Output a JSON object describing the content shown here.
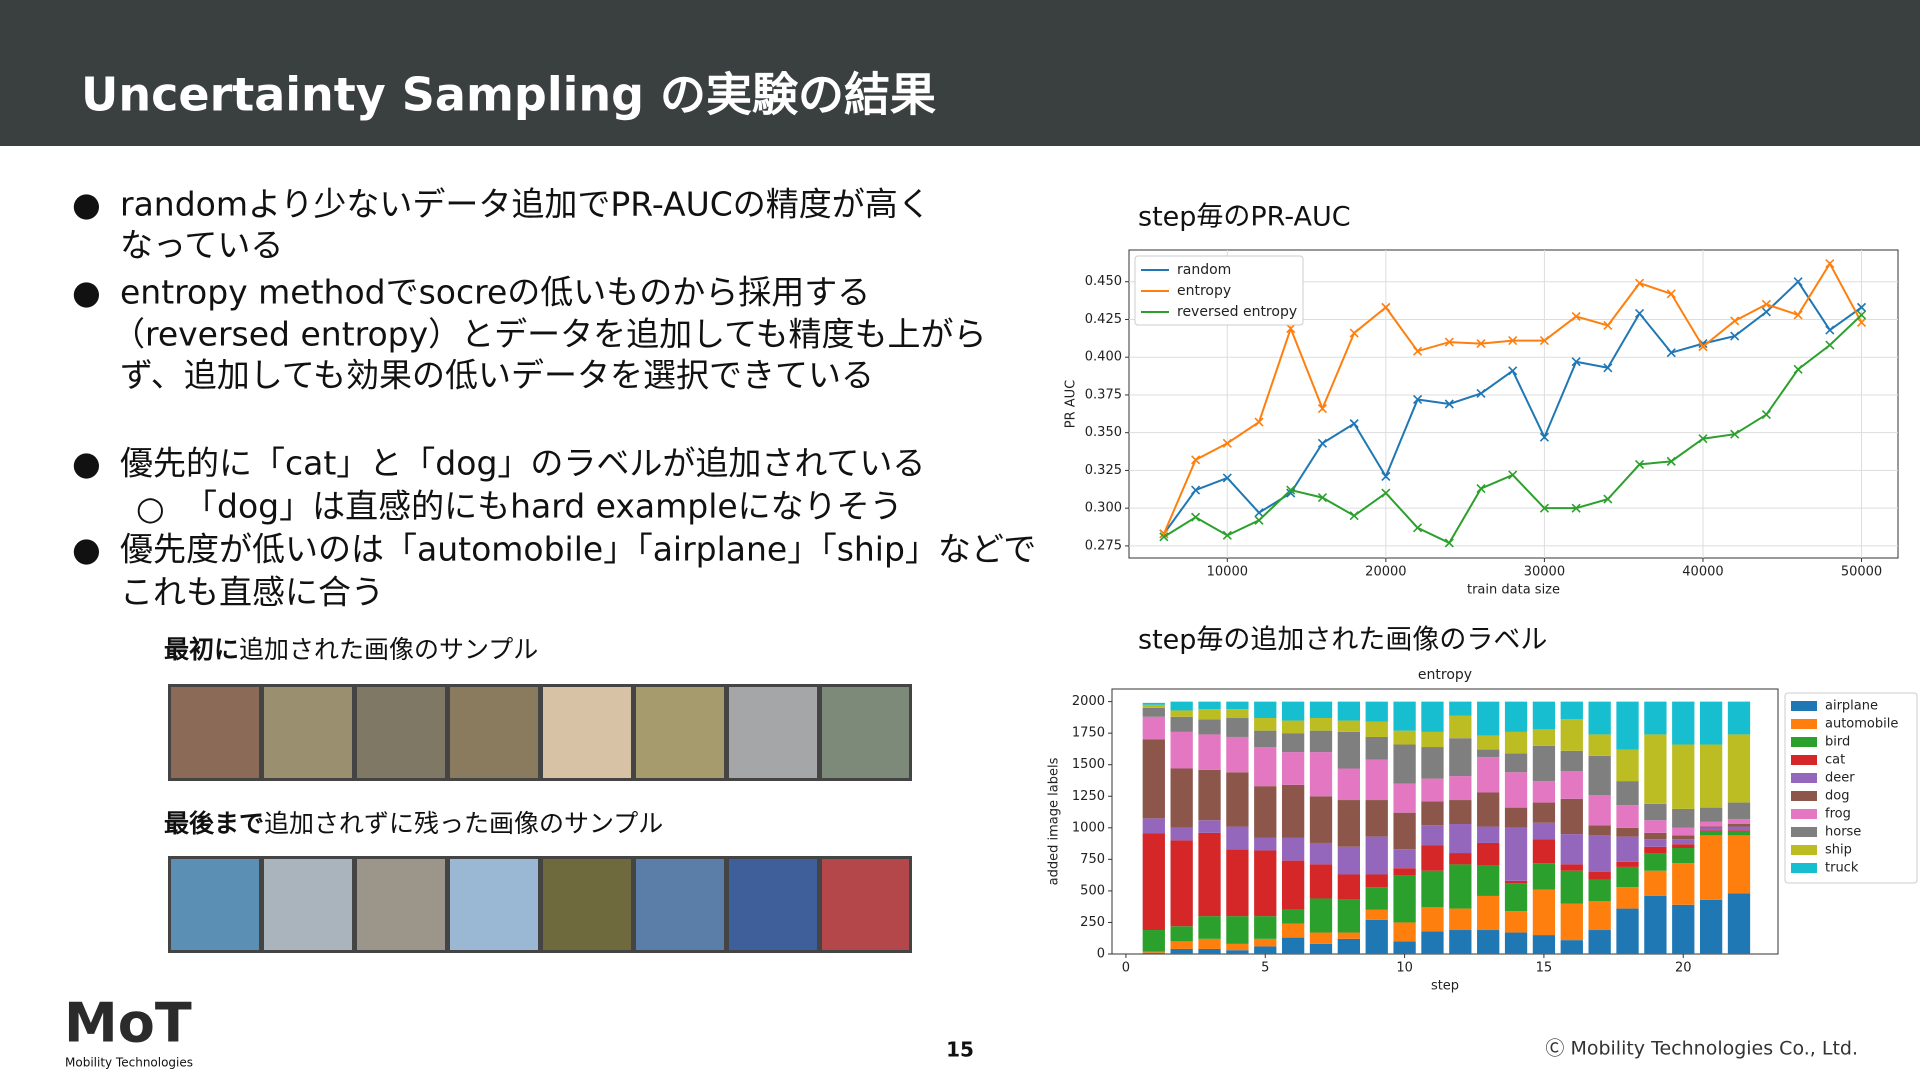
{
  "header": {
    "title": "Uncertainty Sampling の実験の結果"
  },
  "bullets": [
    {
      "lines": [
        "randomより少ないデータ追加でPR-AUCの精度が高く",
        "なっている"
      ]
    },
    {
      "lines": [
        "entropy methodでsocreの低いものから採用する",
        "（reversed entropy）とデータを追加しても精度も上がら",
        "ず、追加しても効果の低いデータを選択できている"
      ]
    },
    {
      "lines": [
        "優先的に「cat」と「dog」のラベルが追加されている"
      ],
      "sub": [
        "「dog」は直感的にもhard exampleになりそう"
      ]
    },
    {
      "lines": [
        "優先度が低いのは「automobile」「airplane」「ship」などで",
        "これも直感に合う"
      ]
    }
  ],
  "samples": [
    {
      "caption_bold": "最初に",
      "caption": "追加された画像のサンプル"
    },
    {
      "caption_bold": "最後まで",
      "caption": "追加されずに残った画像のサンプル"
    }
  ],
  "sections": [
    "step毎のPR-AUC",
    "step毎の追加された画像のラベル"
  ],
  "chart_data": [
    {
      "type": "line",
      "xlabel": "train data size",
      "ylabel": "PR AUC",
      "x": [
        6000,
        8000,
        10000,
        12000,
        14000,
        16000,
        18000,
        20000,
        22000,
        24000,
        26000,
        28000,
        30000,
        32000,
        34000,
        36000,
        38000,
        40000,
        42000,
        44000,
        46000,
        48000,
        50000
      ],
      "series": [
        {
          "name": "random",
          "color": "#1f77b4",
          "values": [
            0.283,
            0.312,
            0.32,
            0.297,
            0.31,
            0.343,
            0.356,
            0.321,
            0.372,
            0.369,
            0.376,
            0.391,
            0.347,
            0.397,
            0.393,
            0.429,
            0.403,
            0.409,
            0.414,
            0.43,
            0.45,
            0.418,
            0.433
          ]
        },
        {
          "name": "entropy",
          "color": "#ff7f0e",
          "values": [
            0.283,
            0.332,
            0.343,
            0.357,
            0.419,
            0.366,
            0.416,
            0.433,
            0.404,
            0.41,
            0.409,
            0.411,
            0.411,
            0.427,
            0.421,
            0.449,
            0.442,
            0.407,
            0.424,
            0.435,
            0.428,
            0.462,
            0.423
          ]
        },
        {
          "name": "reversed entropy",
          "color": "#2ca02c",
          "values": [
            0.281,
            0.294,
            0.282,
            0.292,
            0.312,
            0.307,
            0.295,
            0.31,
            0.287,
            0.277,
            0.313,
            0.322,
            0.3,
            0.3,
            0.306,
            0.329,
            0.331,
            0.346,
            0.349,
            0.362,
            0.392,
            0.408,
            0.428
          ]
        }
      ],
      "xlim": [
        3800,
        52300
      ],
      "xticks": [
        10000,
        20000,
        30000,
        40000,
        50000
      ],
      "ylim": [
        0.267,
        0.471
      ],
      "yticks": [
        0.275,
        {
          "value": 0.3,
          "label": "0.300"
        },
        0.325,
        {
          "value": 0.35,
          "label": "0.350"
        },
        0.375,
        {
          "value": 0.4,
          "label": "0.400"
        },
        0.425,
        {
          "value": 0.45,
          "label": "0.450"
        }
      ],
      "grid": true,
      "legend": "upper left"
    },
    {
      "type": "stacked_bar",
      "title": "entropy",
      "xlabel": "step",
      "ylabel": "added image labels",
      "x": [
        1,
        2,
        3,
        4,
        5,
        6,
        7,
        8,
        9,
        10,
        11,
        12,
        13,
        14,
        15,
        16,
        17,
        18,
        19,
        20,
        21,
        22
      ],
      "series": [
        {
          "name": "airplane",
          "color": "#1f77b4",
          "values": [
            10,
            40,
            40,
            30,
            60,
            130,
            80,
            120,
            270,
            100,
            180,
            190,
            190,
            170,
            150,
            110,
            190,
            360,
            460,
            390,
            430,
            480
          ]
        },
        {
          "name": "automobile",
          "color": "#ff7f0e",
          "values": [
            10,
            60,
            80,
            50,
            60,
            110,
            90,
            50,
            80,
            150,
            190,
            170,
            270,
            170,
            360,
            290,
            230,
            170,
            200,
            330,
            510,
            460
          ]
        },
        {
          "name": "bird",
          "color": "#2ca02c",
          "values": [
            170,
            120,
            180,
            220,
            180,
            110,
            270,
            260,
            180,
            370,
            290,
            350,
            240,
            220,
            210,
            260,
            170,
            160,
            140,
            120,
            30,
            30
          ]
        },
        {
          "name": "cat",
          "color": "#d62728",
          "values": [
            765,
            680,
            660,
            530,
            520,
            390,
            270,
            200,
            100,
            60,
            200,
            90,
            180,
            20,
            190,
            50,
            60,
            40,
            50,
            30,
            10,
            10
          ]
        },
        {
          "name": "deer",
          "color": "#9467bd",
          "values": [
            120,
            100,
            100,
            180,
            100,
            180,
            170,
            220,
            300,
            150,
            160,
            230,
            130,
            420,
            130,
            240,
            290,
            200,
            60,
            40,
            20,
            30
          ]
        },
        {
          "name": "dog",
          "color": "#8c564b",
          "values": [
            625,
            470,
            400,
            430,
            410,
            420,
            370,
            370,
            290,
            290,
            190,
            190,
            270,
            160,
            160,
            280,
            80,
            70,
            50,
            30,
            10,
            20
          ]
        },
        {
          "name": "frog",
          "color": "#e377c2",
          "values": [
            180,
            290,
            280,
            280,
            310,
            260,
            350,
            250,
            320,
            230,
            180,
            190,
            280,
            280,
            170,
            220,
            240,
            180,
            100,
            60,
            40,
            40
          ]
        },
        {
          "name": "horse",
          "color": "#7f7f7f",
          "values": [
            70,
            120,
            120,
            150,
            130,
            150,
            170,
            290,
            180,
            310,
            250,
            300,
            60,
            150,
            280,
            160,
            310,
            190,
            130,
            150,
            110,
            130
          ]
        },
        {
          "name": "ship",
          "color": "#bcbd22",
          "values": [
            25,
            50,
            80,
            70,
            100,
            100,
            100,
            90,
            120,
            110,
            120,
            180,
            110,
            170,
            130,
            250,
            170,
            250,
            550,
            510,
            500,
            540
          ]
        },
        {
          "name": "truck",
          "color": "#17becf",
          "values": [
            15,
            70,
            60,
            60,
            130,
            150,
            130,
            150,
            160,
            230,
            240,
            110,
            270,
            240,
            220,
            140,
            260,
            380,
            260,
            340,
            340,
            260
          ]
        }
      ],
      "xlim": [
        -0.5,
        23.4
      ],
      "xticks": [
        0,
        5,
        10,
        15,
        20
      ],
      "ylim": [
        0,
        2100
      ],
      "yticks": [
        0,
        250,
        500,
        750,
        1000,
        1250,
        1500,
        1750,
        2000
      ],
      "grid": false,
      "legend": "outside right"
    }
  ],
  "footer": {
    "logo": "MoT",
    "logo_sub": "Mobility Technologies",
    "page": "15",
    "copyright": "Ⓒ Mobility Technologies Co., Ltd."
  }
}
